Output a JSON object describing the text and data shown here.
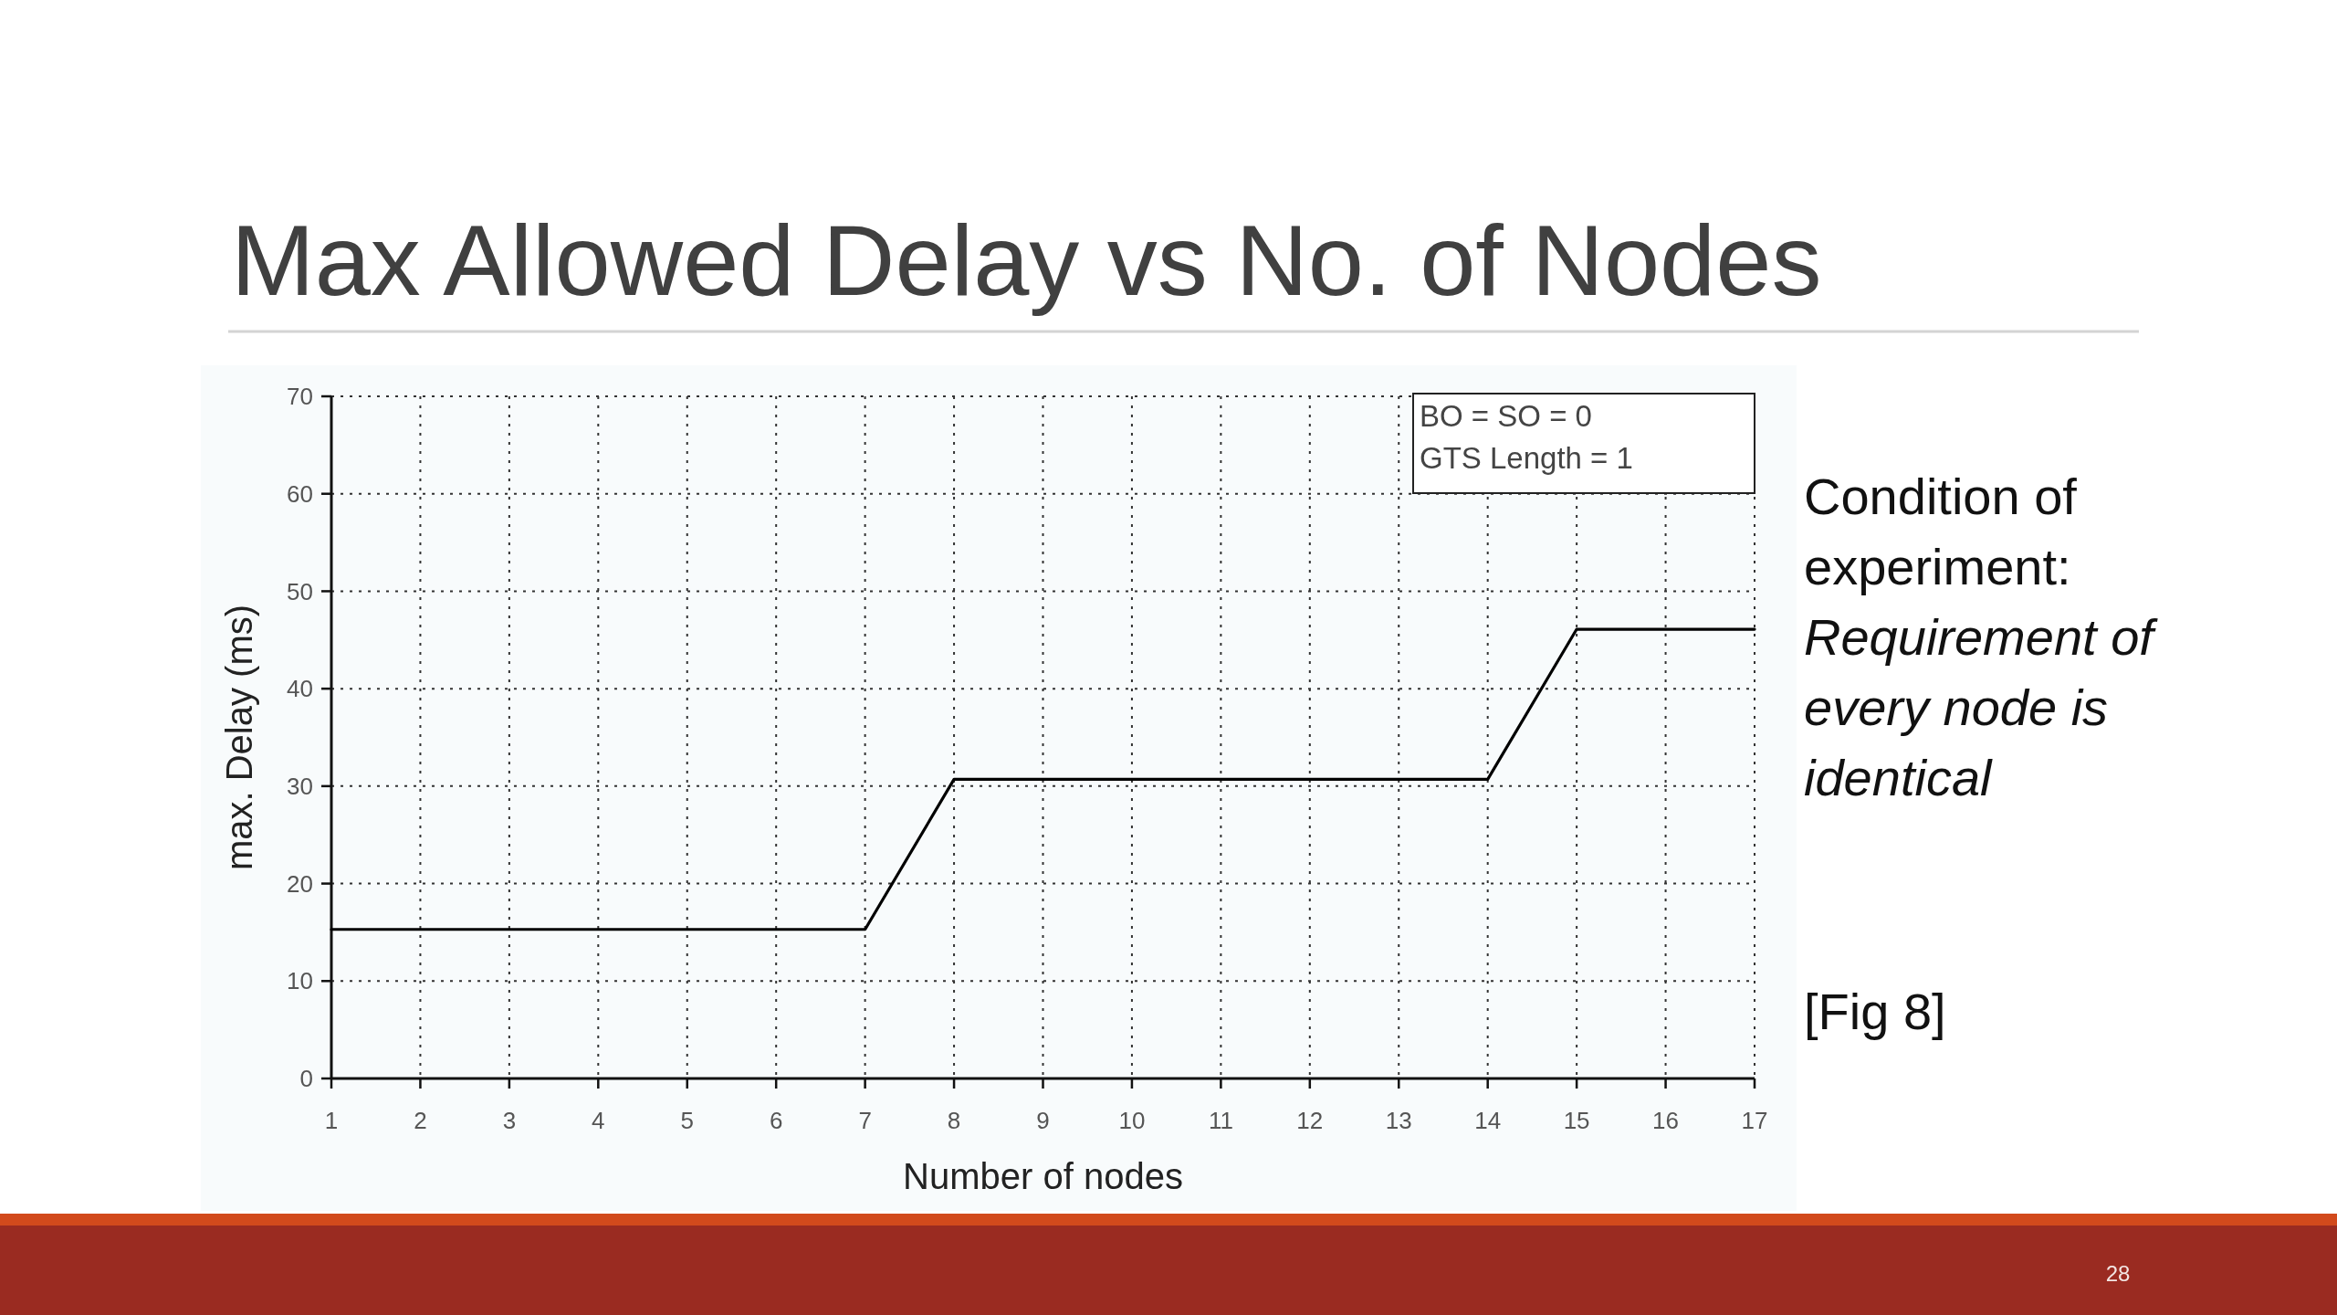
{
  "chart_data": {
    "type": "line",
    "title": "Max Allowed Delay vs No. of Nodes",
    "xlabel": "Number of nodes",
    "ylabel": "max. Delay (ms)",
    "x": [
      1,
      2,
      3,
      4,
      5,
      6,
      7,
      8,
      9,
      10,
      11,
      12,
      13,
      14,
      15,
      16,
      17
    ],
    "values": [
      15.3,
      15.3,
      15.3,
      15.3,
      15.3,
      15.3,
      15.3,
      30.7,
      30.7,
      30.7,
      30.7,
      30.7,
      30.7,
      30.7,
      46.1,
      46.1,
      46.1
    ],
    "color": "#000000",
    "line_style": "solid",
    "xlim": [
      1,
      17
    ],
    "ylim": [
      0,
      70
    ],
    "xticks": [
      1,
      2,
      3,
      4,
      5,
      6,
      7,
      8,
      9,
      10,
      11,
      12,
      13,
      14,
      15,
      16,
      17
    ],
    "yticks": [
      0,
      10,
      20,
      30,
      40,
      50,
      60,
      70
    ],
    "grid": true,
    "annotations": [
      "BO = SO = 0",
      "GTS Length = 1",
      "Condition of experiment:",
      "Requirement of every node is identical",
      "[Fig 8]",
      "28"
    ]
  }
}
